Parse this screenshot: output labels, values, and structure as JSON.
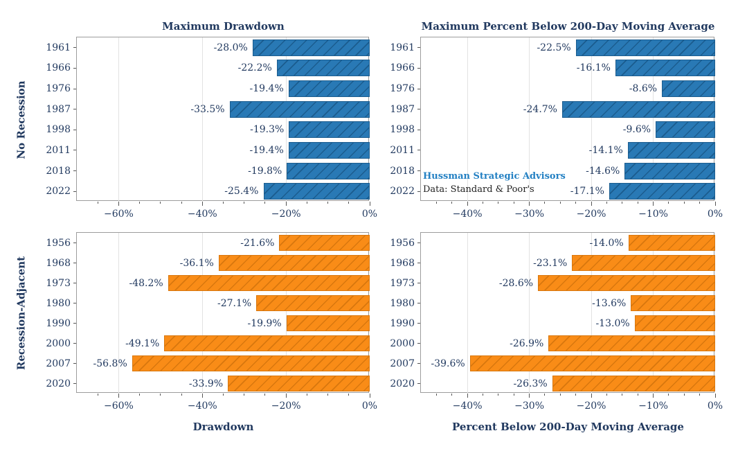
{
  "figure": {
    "background": "#ffffff",
    "row_groups": [
      "No Recession",
      "Recession-Adjacent"
    ],
    "source_note": "Data: Standard & Poor's",
    "brand_note": "Hussman Strategic Advisors"
  },
  "colors": {
    "text_navy": "#21395F",
    "bar_blue": "#2979B5",
    "bar_blue_hatch": "#1B5C8E",
    "bar_orange": "#F98C17",
    "bar_orange_hatch": "#D8770E",
    "brand_blue": "#2380C3",
    "annotation_dark": "#212121",
    "spine": "#9C9C9C",
    "grid": "#E2E2E2",
    "tick": "#555555"
  },
  "chart_data": [
    {
      "id": "no-recession-maximum-drawdown",
      "type": "bar",
      "orientation": "horizontal",
      "title": "Maximum Drawdown",
      "xlabel": null,
      "ylabel": "No Recession",
      "categories": [
        "1961",
        "1966",
        "1976",
        "1987",
        "1998",
        "2011",
        "2018",
        "2022"
      ],
      "values": [
        -28.0,
        -22.2,
        -19.4,
        -33.5,
        -19.3,
        -19.4,
        -19.8,
        -25.4
      ],
      "value_labels": [
        "-28.0%",
        "-22.2%",
        "-19.4%",
        "-33.5%",
        "-19.3%",
        "-19.4%",
        "-19.8%",
        "-25.4%"
      ],
      "xlim": [
        -70,
        0
      ],
      "xticks": [
        -60,
        -40,
        -20,
        0
      ],
      "xtick_labels": [
        "−60%",
        "−40%",
        "−20%",
        "0%"
      ],
      "minor_tick_step": 5,
      "grid": true,
      "legend": null,
      "bar_color": "bar_blue",
      "hatch_color": "bar_blue_hatch",
      "annotations": []
    },
    {
      "id": "no-recession-percent-below-200dma",
      "type": "bar",
      "orientation": "horizontal",
      "title": "Maximum Percent Below 200-Day Moving Average",
      "xlabel": null,
      "ylabel": null,
      "categories": [
        "1961",
        "1966",
        "1976",
        "1987",
        "1998",
        "2011",
        "2018",
        "2022"
      ],
      "values": [
        -22.5,
        -16.1,
        -8.6,
        -24.7,
        -9.6,
        -14.1,
        -14.6,
        -17.1
      ],
      "value_labels": [
        "-22.5%",
        "-16.1%",
        "-8.6%",
        "-24.7%",
        "-9.6%",
        "-14.1%",
        "-14.6%",
        "-17.1%"
      ],
      "xlim": [
        -47.5,
        0
      ],
      "xticks": [
        -40,
        -30,
        -20,
        -10,
        0
      ],
      "xtick_labels": [
        "−40%",
        "−30%",
        "−20%",
        "−10%",
        "0%"
      ],
      "minor_tick_step": 2.5,
      "grid": true,
      "legend": null,
      "bar_color": "bar_blue",
      "hatch_color": "bar_blue_hatch",
      "annotations": [
        {
          "text": "Hussman Strategic Advisors",
          "color": "brand_blue",
          "bold": true
        },
        {
          "text": "Data: Standard & Poor's",
          "color": "annotation_dark",
          "bold": false
        }
      ]
    },
    {
      "id": "recession-adjacent-drawdown",
      "type": "bar",
      "orientation": "horizontal",
      "title": null,
      "xlabel": "Drawdown",
      "ylabel": "Recession-Adjacent",
      "categories": [
        "1956",
        "1968",
        "1973",
        "1980",
        "1990",
        "2000",
        "2007",
        "2020"
      ],
      "values": [
        -21.6,
        -36.1,
        -48.2,
        -27.1,
        -19.9,
        -49.1,
        -56.8,
        -33.9
      ],
      "value_labels": [
        "-21.6%",
        "-36.1%",
        "-48.2%",
        "-27.1%",
        "-19.9%",
        "-49.1%",
        "-56.8%",
        "-33.9%"
      ],
      "xlim": [
        -70,
        0
      ],
      "xticks": [
        -60,
        -40,
        -20,
        0
      ],
      "xtick_labels": [
        "−60%",
        "−40%",
        "−20%",
        "0%"
      ],
      "minor_tick_step": 5,
      "grid": true,
      "legend": null,
      "bar_color": "bar_orange",
      "hatch_color": "bar_orange_hatch",
      "annotations": []
    },
    {
      "id": "recession-adjacent-percent-below-200dma",
      "type": "bar",
      "orientation": "horizontal",
      "title": null,
      "xlabel": "Percent Below 200-Day Moving Average",
      "ylabel": null,
      "categories": [
        "1956",
        "1968",
        "1973",
        "1980",
        "1990",
        "2000",
        "2007",
        "2020"
      ],
      "values": [
        -14.0,
        -23.1,
        -28.6,
        -13.6,
        -13.0,
        -26.9,
        -39.6,
        -26.3
      ],
      "value_labels": [
        "-14.0%",
        "-23.1%",
        "-28.6%",
        "-13.6%",
        "-13.0%",
        "-26.9%",
        "-39.6%",
        "-26.3%"
      ],
      "xlim": [
        -47.5,
        0
      ],
      "xticks": [
        -40,
        -30,
        -20,
        -10,
        0
      ],
      "xtick_labels": [
        "−40%",
        "−30%",
        "−20%",
        "−10%",
        "0%"
      ],
      "minor_tick_step": 2.5,
      "grid": true,
      "legend": null,
      "bar_color": "bar_orange",
      "hatch_color": "bar_orange_hatch",
      "annotations": []
    }
  ]
}
